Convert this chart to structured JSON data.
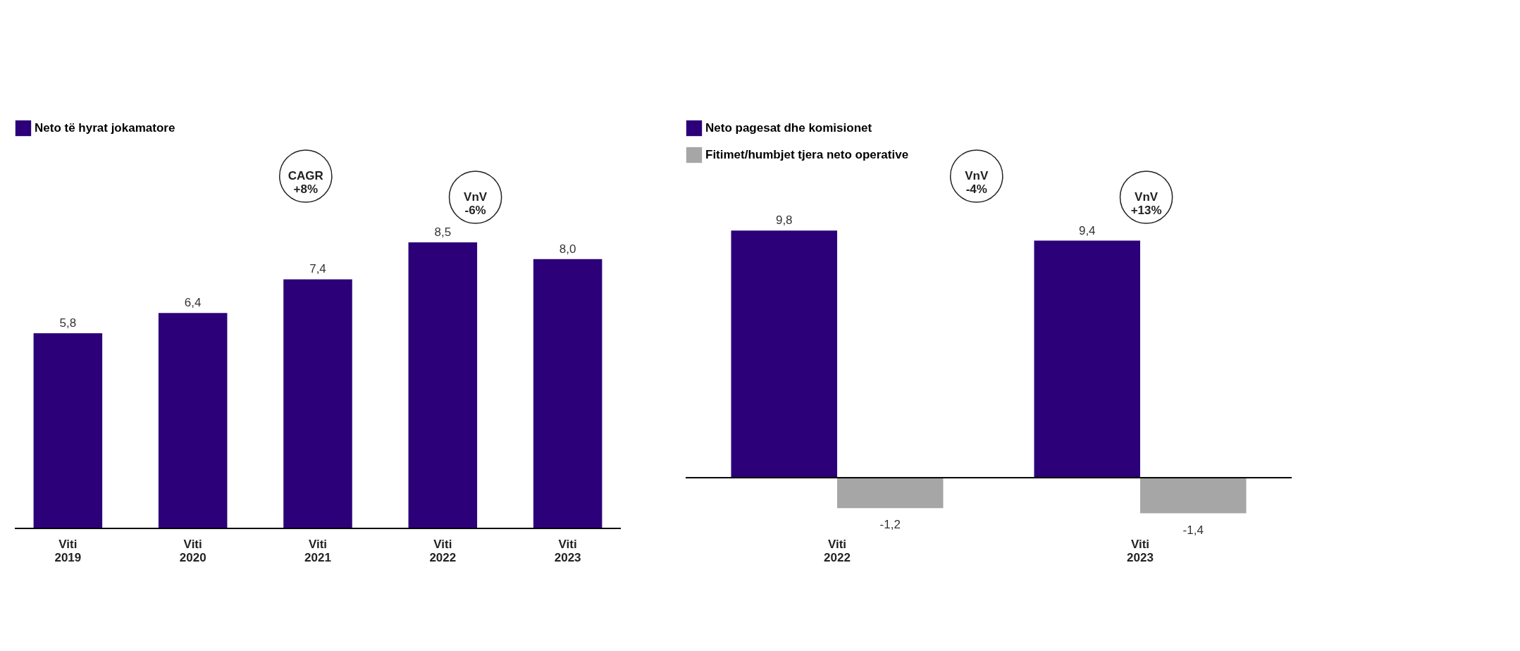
{
  "chart_data": [
    {
      "type": "bar",
      "categories": [
        "Viti 2019",
        "Viti 2020",
        "Viti 2021",
        "Viti 2022",
        "Viti 2023"
      ],
      "series": [
        {
          "name": "Neto të hyrat jokamatore",
          "color": "#2b0079",
          "values": [
            5.8,
            6.4,
            7.4,
            8.5,
            8.0
          ],
          "value_labels": [
            "5,8",
            "6,4",
            "7,4",
            "8,5",
            "8,0"
          ]
        }
      ],
      "annotations": [
        "CAGR +8%",
        "VnV -6%"
      ],
      "legend": "top left",
      "grid": false
    },
    {
      "type": "bar",
      "categories": [
        "Viti 2022",
        "Viti 2023"
      ],
      "series": [
        {
          "name": "Neto pagesat dhe komisionet",
          "color": "#2b0079",
          "values": [
            9.8,
            9.4
          ],
          "value_labels": [
            "9,8",
            "9,4"
          ]
        },
        {
          "name": "Fitimet/humbjet tjera neto operative",
          "color": "#a6a6a6",
          "values": [
            -1.2,
            -1.4
          ],
          "value_labels": [
            "-1,2",
            "-1,4"
          ]
        }
      ],
      "annotations": [
        "VnV -4%",
        "VnV +13%"
      ],
      "legend": "top left",
      "grid": false
    }
  ]
}
